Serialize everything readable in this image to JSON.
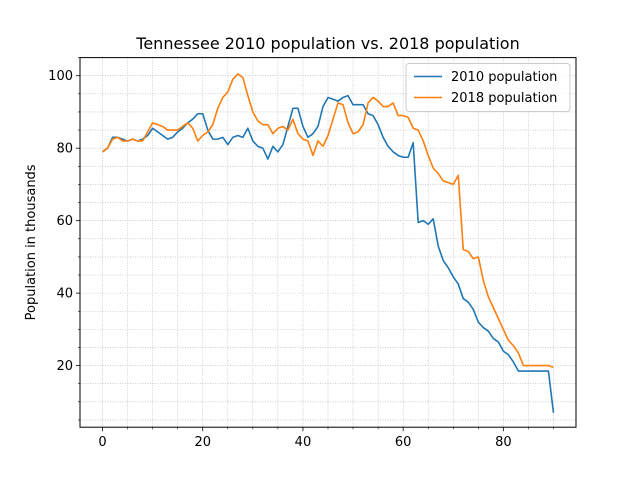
{
  "chart_data": {
    "type": "line",
    "title": "Tennessee 2010 population vs. 2018 population",
    "xlabel": "",
    "ylabel": "Population in thousands",
    "xlim": [
      -4.5,
      94.5
    ],
    "ylim": [
      3,
      105
    ],
    "xticks": [
      0,
      20,
      40,
      60,
      80
    ],
    "yticks": [
      20,
      40,
      60,
      80,
      100
    ],
    "grid": true,
    "legend_position": "upper right",
    "x": [
      0,
      1,
      2,
      3,
      4,
      5,
      6,
      7,
      8,
      9,
      10,
      11,
      12,
      13,
      14,
      15,
      16,
      17,
      18,
      19,
      20,
      21,
      22,
      23,
      24,
      25,
      26,
      27,
      28,
      29,
      30,
      31,
      32,
      33,
      34,
      35,
      36,
      37,
      38,
      39,
      40,
      41,
      42,
      43,
      44,
      45,
      46,
      47,
      48,
      49,
      50,
      51,
      52,
      53,
      54,
      55,
      56,
      57,
      58,
      59,
      60,
      61,
      62,
      63,
      64,
      65,
      66,
      67,
      68,
      69,
      70,
      71,
      72,
      73,
      74,
      75,
      76,
      77,
      78,
      79,
      80,
      81,
      82,
      83,
      84,
      85,
      86,
      87,
      88,
      89,
      90
    ],
    "series": [
      {
        "name": "2010 population",
        "color": "#1f77b4",
        "values": [
          79,
          80,
          83,
          83,
          82.5,
          82,
          82.5,
          82,
          82.5,
          83.5,
          85.5,
          84.5,
          83.5,
          82.5,
          83,
          84.5,
          85.5,
          87,
          88,
          89.5,
          89.5,
          85,
          82.5,
          82.5,
          83,
          81,
          83,
          83.5,
          83,
          85.5,
          82,
          80.5,
          80,
          77,
          80.5,
          79,
          81,
          86,
          91,
          91,
          86,
          83,
          84,
          86,
          91.5,
          94,
          93.5,
          93,
          94,
          94.5,
          92,
          92,
          92,
          89.5,
          89,
          86.5,
          83,
          80.5,
          79,
          78,
          77.5,
          77.5,
          81.5,
          59.5,
          60,
          59,
          60.5,
          53,
          49,
          47,
          44.5,
          42.5,
          38.5,
          37.5,
          35.5,
          32,
          30.5,
          29.5,
          27.5,
          26.5,
          24,
          23,
          21,
          18.5,
          18.5,
          18.5,
          18.5,
          18.5,
          18.5,
          18.5,
          7
        ]
      },
      {
        "name": "2018 population",
        "color": "#ff7f0e",
        "values": [
          79,
          80,
          82.5,
          83,
          82,
          82,
          82.5,
          82,
          82,
          84.5,
          87,
          86.5,
          86,
          85,
          85,
          85,
          86,
          87,
          85.5,
          82,
          83.5,
          84.5,
          86.5,
          91,
          94,
          95.5,
          99,
          100.5,
          99.5,
          94.5,
          90,
          87.5,
          86.5,
          86.5,
          84,
          85.5,
          86,
          85,
          88,
          84,
          82.5,
          82,
          78,
          82,
          80.5,
          83.5,
          88,
          92.5,
          92,
          87,
          84,
          84.5,
          86.5,
          92.5,
          94,
          93,
          91.5,
          91.5,
          92.5,
          89,
          89,
          88.5,
          85.5,
          85,
          82,
          78,
          74.5,
          73,
          71,
          70.5,
          70,
          72.5,
          52,
          51.5,
          49.5,
          50,
          43.5,
          39,
          36,
          33,
          30,
          27,
          25.5,
          23.5,
          20,
          20,
          20,
          20,
          20,
          20,
          19.5
        ]
      }
    ]
  }
}
